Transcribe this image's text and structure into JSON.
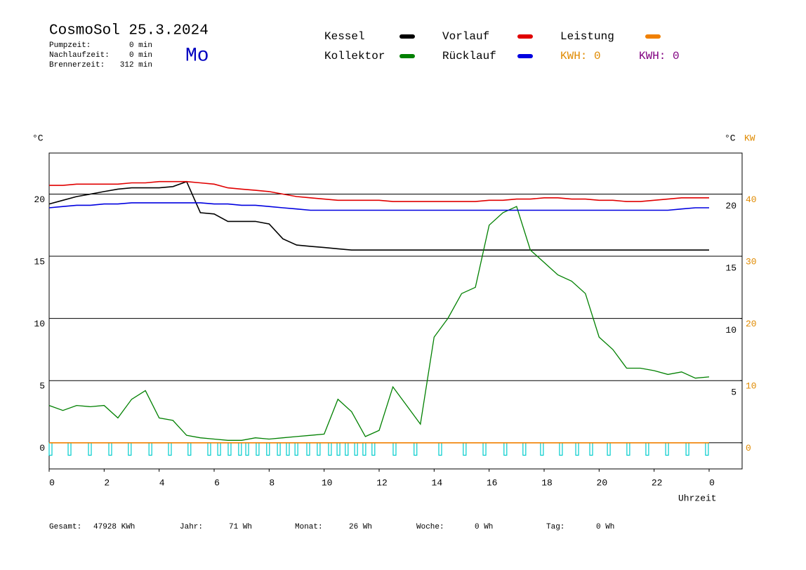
{
  "chart_data": {
    "type": "line",
    "title": "CosmoSol 25.3.2024",
    "weekday": "Mo",
    "stats": [
      {
        "label": "Pumpzeit:",
        "value": "0 min"
      },
      {
        "label": "Nachlaufzeit:",
        "value": "0 min"
      },
      {
        "label": "Brennerzeit:",
        "value": "312 min"
      }
    ],
    "ylabel": "°C",
    "y2label_left": "°C",
    "y2label": "KW",
    "xlabel": "Uhrzeit",
    "kwh_labels": [
      {
        "text": "KWH: 0",
        "color": "#e08a00"
      },
      {
        "text": "KWH: 0",
        "color": "#800080"
      }
    ],
    "x": [
      0,
      0.5,
      1,
      1.5,
      2,
      2.5,
      3,
      3.5,
      4,
      4.5,
      5,
      5.5,
      6,
      6.5,
      7,
      7.5,
      8,
      8.5,
      9,
      9.5,
      10,
      10.5,
      11,
      11.5,
      12,
      12.5,
      13,
      13.5,
      14,
      14.5,
      15,
      15.5,
      16,
      16.5,
      17,
      17.5,
      18,
      18.5,
      19,
      19.5,
      20,
      20.5,
      21,
      21.5,
      22,
      22.5,
      23,
      23.5,
      24
    ],
    "series": [
      {
        "name": "Kessel",
        "color": "#000000",
        "values": [
          19.2,
          19.5,
          19.8,
          20.0,
          20.2,
          20.4,
          20.5,
          20.5,
          20.5,
          20.6,
          21.0,
          18.5,
          18.4,
          17.8,
          17.8,
          17.8,
          17.6,
          16.4,
          15.9,
          15.8,
          15.7,
          15.6,
          15.5,
          15.5,
          15.5,
          15.5,
          15.5,
          15.5,
          15.5,
          15.5,
          15.5,
          15.5,
          15.5,
          15.5,
          15.5,
          15.5,
          15.5,
          15.5,
          15.5,
          15.5,
          15.5,
          15.5,
          15.5,
          15.5,
          15.5,
          15.5,
          15.5,
          15.5,
          15.5
        ]
      },
      {
        "name": "Kollektor",
        "color": "#008000",
        "values": [
          3.0,
          2.6,
          3.0,
          2.9,
          3.0,
          2.0,
          3.5,
          4.2,
          2.0,
          1.8,
          0.6,
          0.4,
          0.3,
          0.2,
          0.2,
          0.4,
          0.3,
          0.4,
          0.5,
          0.6,
          0.7,
          3.5,
          2.5,
          0.5,
          1.0,
          4.5,
          3.0,
          1.5,
          8.5,
          10.0,
          12.0,
          12.5,
          17.5,
          18.5,
          19.0,
          15.5,
          14.5,
          13.5,
          13.0,
          12.0,
          8.5,
          7.5,
          6.0,
          6.0,
          5.8,
          5.5,
          5.7,
          5.2,
          5.3
        ]
      },
      {
        "name": "Vorlauf",
        "color": "#e00000",
        "values": [
          20.7,
          20.7,
          20.8,
          20.8,
          20.8,
          20.8,
          20.9,
          20.9,
          21.0,
          21.0,
          21.0,
          20.9,
          20.8,
          20.5,
          20.4,
          20.3,
          20.2,
          20.0,
          19.8,
          19.7,
          19.6,
          19.5,
          19.5,
          19.5,
          19.5,
          19.4,
          19.4,
          19.4,
          19.4,
          19.4,
          19.4,
          19.4,
          19.5,
          19.5,
          19.6,
          19.6,
          19.7,
          19.7,
          19.6,
          19.6,
          19.5,
          19.5,
          19.4,
          19.4,
          19.5,
          19.6,
          19.7,
          19.7,
          19.7
        ]
      },
      {
        "name": "Rücklauf",
        "color": "#0000e0",
        "values": [
          18.9,
          19.0,
          19.1,
          19.1,
          19.2,
          19.2,
          19.3,
          19.3,
          19.3,
          19.3,
          19.3,
          19.3,
          19.2,
          19.2,
          19.1,
          19.1,
          19.0,
          18.9,
          18.8,
          18.7,
          18.7,
          18.7,
          18.7,
          18.7,
          18.7,
          18.7,
          18.7,
          18.7,
          18.7,
          18.7,
          18.7,
          18.7,
          18.7,
          18.7,
          18.7,
          18.7,
          18.7,
          18.7,
          18.7,
          18.7,
          18.7,
          18.7,
          18.7,
          18.7,
          18.7,
          18.7,
          18.8,
          18.9,
          18.9
        ]
      },
      {
        "name": "Leistung",
        "color": "#f08000",
        "axis": "y2",
        "values": [
          0,
          0,
          0,
          0,
          0,
          0,
          0,
          0,
          0,
          0,
          0,
          0,
          0,
          0,
          0,
          0,
          0,
          0,
          0,
          0,
          0,
          0,
          0,
          0,
          0,
          0,
          0,
          0,
          0,
          0,
          0,
          0,
          0,
          0,
          0,
          0,
          0,
          0,
          0,
          0,
          0,
          0,
          0,
          0,
          0,
          0,
          0,
          0,
          0
        ]
      }
    ],
    "pump_color": "#00cccc",
    "pump_pulses": [
      0,
      0.69,
      1.43,
      2.17,
      2.88,
      3.63,
      4.34,
      5.05,
      5.77,
      6.13,
      6.51,
      6.89,
      7.15,
      7.53,
      7.91,
      8.3,
      8.63,
      8.94,
      9.37,
      9.75,
      10.16,
      10.47,
      10.77,
      11.11,
      11.41,
      11.74,
      12.51,
      13.27,
      14.17,
      15.06,
      15.78,
      16.54,
      17.23,
      17.87,
      18.56,
      19.15,
      19.66,
      20.3,
      21.01,
      21.7,
      22.42,
      23.16,
      23.87
    ],
    "xlim": [
      0,
      25.2
    ],
    "xticks": [
      0,
      2,
      4,
      6,
      8,
      10,
      12,
      14,
      16,
      18,
      20,
      22,
      {
        "value": 24,
        "label": "0"
      }
    ],
    "ylim": [
      -2.1,
      23.3
    ],
    "yticks": [
      0,
      5,
      10,
      15,
      20
    ],
    "yticks_right": [
      5,
      10,
      15,
      20
    ],
    "y2lim": [
      -4.2,
      46.6
    ],
    "y2ticks": [
      0,
      10,
      20,
      30,
      40
    ],
    "y2color": "#e08a00",
    "grid": true,
    "footer": [
      {
        "label": "Gesamt:",
        "value": "47928 KWh"
      },
      {
        "label": "Jahr:",
        "value": "71 Wh"
      },
      {
        "label": "Monat:",
        "value": "26 Wh"
      },
      {
        "label": "Woche:",
        "value": "0 Wh"
      },
      {
        "label": "Tag:",
        "value": "0 Wh"
      }
    ]
  }
}
